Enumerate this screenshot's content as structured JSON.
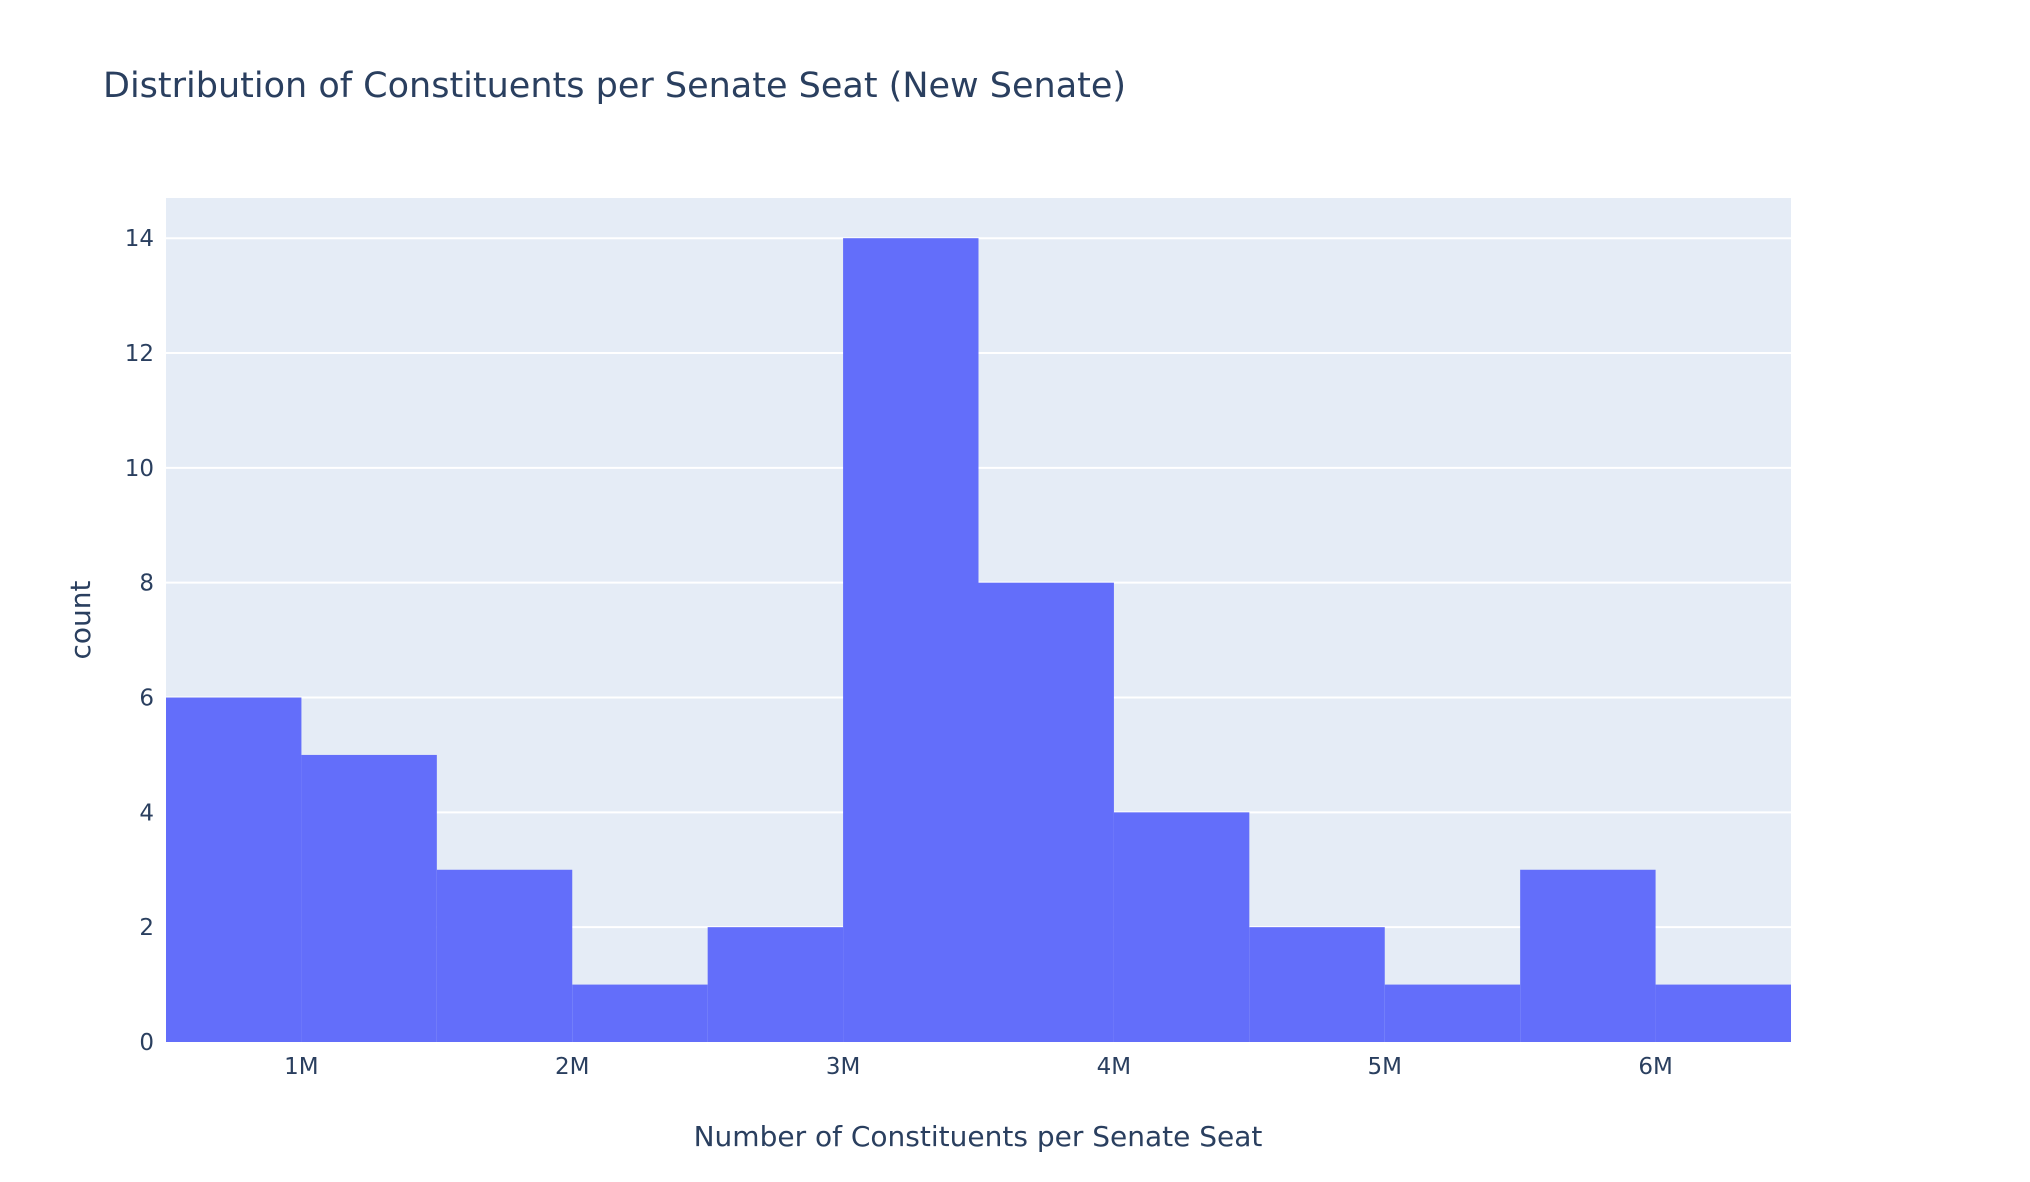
{
  "chart_data": {
    "type": "bar",
    "title": "Distribution of Constituents per Senate Seat (New Senate)",
    "xlabel": "Number of Constituents per Senate Seat",
    "ylabel": "count",
    "bin_edges": [
      500000,
      1000000,
      1500000,
      2000000,
      2500000,
      3000000,
      3500000,
      4000000,
      4500000,
      5000000,
      5500000,
      6000000,
      6500000
    ],
    "values": [
      6,
      5,
      3,
      1,
      2,
      14,
      8,
      4,
      2,
      1,
      3,
      1
    ],
    "xlim": [
      500000,
      6500000
    ],
    "ylim": [
      0,
      14.7
    ],
    "x_ticks": [
      {
        "value": 1000000,
        "label": "1M"
      },
      {
        "value": 2000000,
        "label": "2M"
      },
      {
        "value": 3000000,
        "label": "3M"
      },
      {
        "value": 4000000,
        "label": "4M"
      },
      {
        "value": 5000000,
        "label": "5M"
      },
      {
        "value": 6000000,
        "label": "6M"
      }
    ],
    "y_ticks": [
      {
        "value": 0,
        "label": "0"
      },
      {
        "value": 2,
        "label": "2"
      },
      {
        "value": 4,
        "label": "4"
      },
      {
        "value": 6,
        "label": "6"
      },
      {
        "value": 8,
        "label": "8"
      },
      {
        "value": 10,
        "label": "10"
      },
      {
        "value": 12,
        "label": "12"
      },
      {
        "value": 14,
        "label": "14"
      }
    ],
    "grid": true,
    "colors": {
      "bar": "#636efa",
      "plot_bg": "#e5ecf6",
      "grid": "#ffffff",
      "text": "#2a3f5f"
    }
  }
}
